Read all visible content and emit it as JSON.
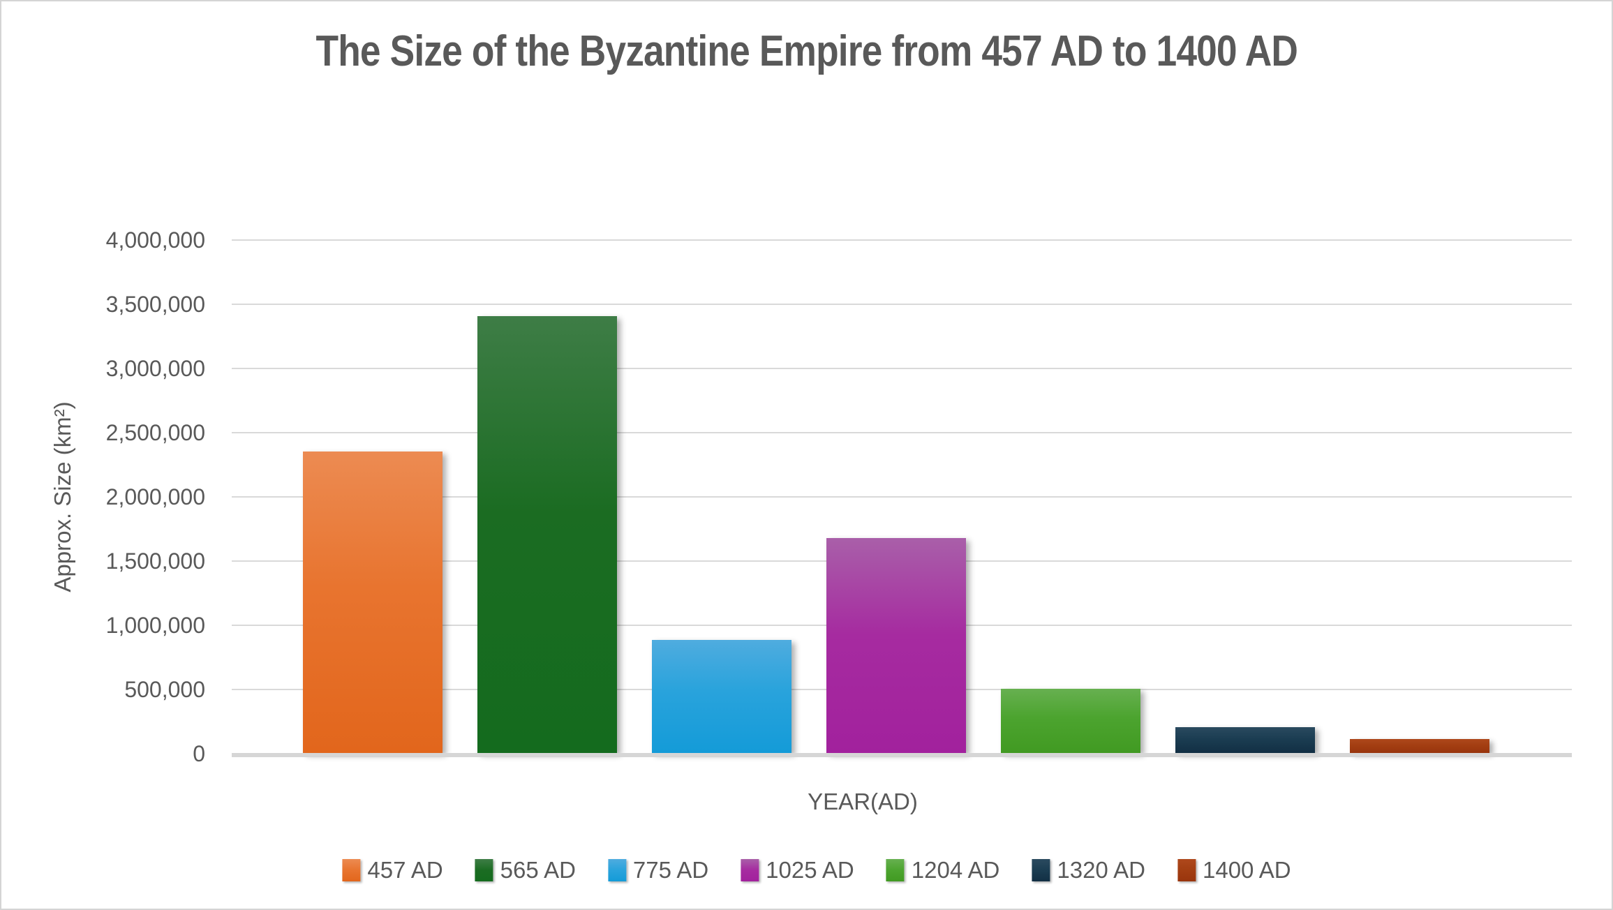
{
  "title": "The Size of the Byzantine Empire from 457 AD to 1400 AD",
  "colors": {
    "text": "#595959",
    "gridline": "#d9d9d9",
    "baseline": "#d6d6d6",
    "background": "#ffffff",
    "frame_border": "#d4d4d4"
  },
  "chart_data": {
    "type": "bar",
    "title": "The Size of the Byzantine Empire from 457 AD to 1400 AD",
    "xlabel": "YEAR(AD)",
    "ylabel": "Approx. Size (km²)",
    "ylim": [
      0,
      4000000
    ],
    "y_tick_step": 500000,
    "y_tick_labels": [
      "0",
      "500,000",
      "1,000,000",
      "1,500,000",
      "2,000,000",
      "2,500,000",
      "3,000,000",
      "3,500,000",
      "4,000,000"
    ],
    "grid": true,
    "legend_position": "bottom",
    "series": [
      {
        "name": "457 AD",
        "value": 2350000,
        "color": "#E8742F",
        "gradient_top": "#EC8B52",
        "gradient_bottom": "#E2661C"
      },
      {
        "name": "565 AD",
        "value": 3400000,
        "color": "#1B6C22",
        "gradient_top": "#3E7D46",
        "gradient_bottom": "#146B1E"
      },
      {
        "name": "775 AD",
        "value": 880000,
        "color": "#29A3DC",
        "gradient_top": "#4FACDF",
        "gradient_bottom": "#149BD8"
      },
      {
        "name": "1025 AD",
        "value": 1675000,
        "color": "#A62BA0",
        "gradient_top": "#A95FA9",
        "gradient_bottom": "#A2219D"
      },
      {
        "name": "1204 AD",
        "value": 500000,
        "color": "#4CA42F",
        "gradient_top": "#67B050",
        "gradient_bottom": "#419A22"
      },
      {
        "name": "1320 AD",
        "value": 200000,
        "color": "#1B3D52",
        "gradient_top": "#2A4A5F",
        "gradient_bottom": "#122F44"
      },
      {
        "name": "1400 AD",
        "value": 110000,
        "color": "#A33E12",
        "gradient_top": "#AE481C",
        "gradient_bottom": "#99350D"
      }
    ]
  }
}
